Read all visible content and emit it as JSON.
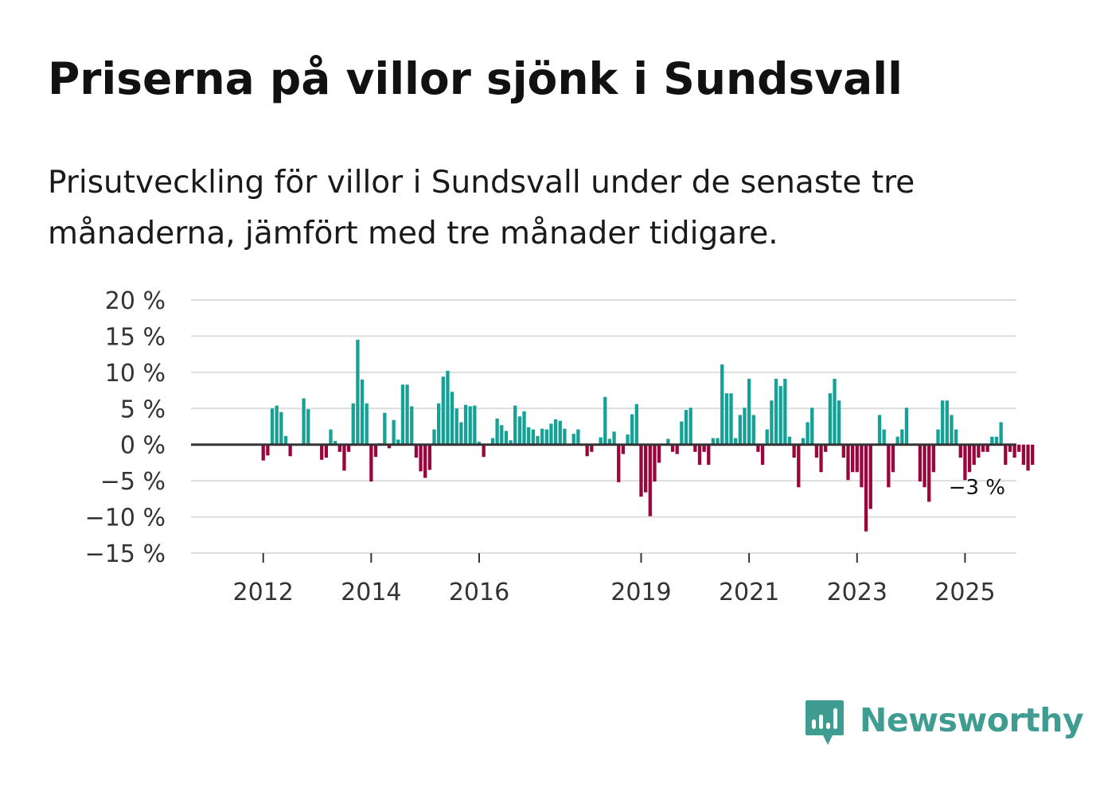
{
  "title": "Priserna på villor sjönk i Sundsvall",
  "subtitle": "Prisutveckling för villor i Sundsvall under de senaste tre månaderna, jämfört med tre månader tidigare.",
  "brand": {
    "name": "Newsworthy",
    "color": "#3e9c91",
    "icon": "bar-chart-speech-bubble-icon"
  },
  "colors": {
    "positive": "#15a196",
    "negative": "#9a063c",
    "gridline": "#dddddd",
    "zero_line": "#333333"
  },
  "chart_data": {
    "type": "bar",
    "title": "Priserna på villor sjönk i Sundsvall",
    "xlabel": "",
    "ylabel": "",
    "unit": "%",
    "ylim": [
      -15,
      20
    ],
    "y_ticks": [
      {
        "value": 20,
        "label": "20 %"
      },
      {
        "value": 15,
        "label": "15 %"
      },
      {
        "value": 10,
        "label": "10 %"
      },
      {
        "value": 5,
        "label": "5 %"
      },
      {
        "value": 0,
        "label": "0 %"
      },
      {
        "value": -5,
        "label": "−5 %"
      },
      {
        "value": -10,
        "label": "−10 %"
      },
      {
        "value": -15,
        "label": "−15 %"
      }
    ],
    "x_ticks": [
      {
        "month_index": 8,
        "label": "2012"
      },
      {
        "month_index": 32,
        "label": "2014"
      },
      {
        "month_index": 56,
        "label": "2016"
      },
      {
        "month_index": 92,
        "label": "2019"
      },
      {
        "month_index": 116,
        "label": "2021"
      },
      {
        "month_index": 140,
        "label": "2023"
      },
      {
        "month_index": 164,
        "label": "2025"
      }
    ],
    "start_month": "2011-05",
    "end_label": "−3 %",
    "values": [
      0,
      0,
      0,
      0,
      0,
      0,
      0,
      0,
      -2.2,
      -1.5,
      5,
      5.4,
      4.5,
      1.2,
      -1.6,
      0,
      0,
      6.4,
      4.9,
      0,
      0,
      -2.1,
      -1.8,
      2.1,
      0.5,
      -1,
      -3.6,
      -1,
      5.7,
      14.5,
      9,
      5.7,
      -5.1,
      -1.7,
      0.2,
      4.4,
      -0.5,
      3.4,
      0.7,
      8.3,
      8.3,
      5.3,
      -1.8,
      -3.7,
      -4.6,
      -3.5,
      2.1,
      5.7,
      9.4,
      10.2,
      7.3,
      5,
      3.1,
      5.5,
      5.3,
      5.4,
      0.4,
      -1.7,
      0,
      0.9,
      3.6,
      2.7,
      1.9,
      0.6,
      5.4,
      3.9,
      4.6,
      2.4,
      2.1,
      1.2,
      2.2,
      2.1,
      2.9,
      3.5,
      3.3,
      2.2,
      0,
      1.5,
      2.1,
      0,
      -1.6,
      -1,
      0,
      1,
      6.6,
      0.8,
      1.8,
      -5.2,
      -1.3,
      1.4,
      4.2,
      5.6,
      -7.2,
      -6.6,
      -9.9,
      -5.1,
      -2.5,
      0,
      0.8,
      -1,
      -1.3,
      3.2,
      4.8,
      5.1,
      -1,
      -2.8,
      -1,
      -2.8,
      0.9,
      0.9,
      11.1,
      7.1,
      7.1,
      0.9,
      4.1,
      5.1,
      9.1,
      4.1,
      -1,
      -2.8,
      2.1,
      6.1,
      9.1,
      8.1,
      9.1,
      1.1,
      -1.8,
      -5.9,
      0.9,
      3.1,
      5.1,
      -1.8,
      -3.8,
      -1,
      7.1,
      9.1,
      6.1,
      -1.8,
      -4.9,
      -3.8,
      -3.8,
      -5.9,
      -12,
      -8.9,
      0,
      4.1,
      2.1,
      -5.9,
      -3.8,
      1.1,
      2.1,
      5.1,
      0,
      0,
      -5.1,
      -5.9,
      -7.9,
      -3.8,
      2.1,
      6.1,
      6.1,
      4.1,
      2.1,
      -1.8,
      -4.9,
      -3.8,
      -2.8,
      -1.8,
      -1,
      -1,
      1.1,
      1.1,
      3.1,
      -2.8,
      -1,
      -1.8,
      -1,
      -2.8,
      -3.6,
      -2.8
    ]
  }
}
